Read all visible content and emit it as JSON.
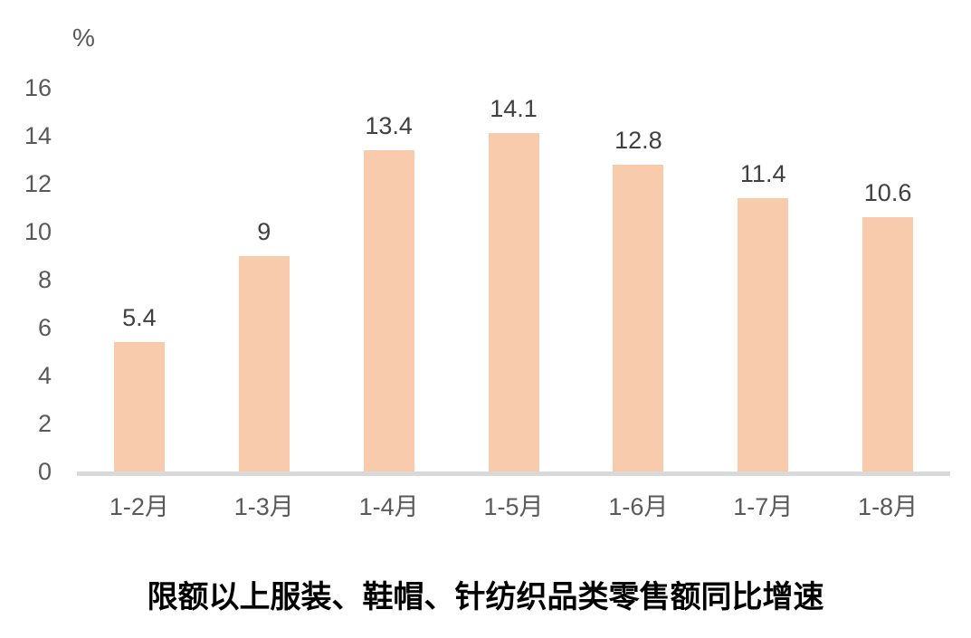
{
  "chart_data": {
    "type": "bar",
    "title": "限额以上服装、鞋帽、针纺织品类零售额同比增速",
    "unit_label": "%",
    "categories": [
      "1-2月",
      "1-3月",
      "1-4月",
      "1-5月",
      "1-6月",
      "1-7月",
      "1-8月"
    ],
    "values": [
      5.4,
      9,
      13.4,
      14.1,
      12.8,
      11.4,
      10.6
    ],
    "value_labels": [
      "5.4",
      "9",
      "13.4",
      "14.1",
      "12.8",
      "11.4",
      "10.6"
    ],
    "ylim": [
      0,
      16
    ],
    "yticks": [
      0,
      2,
      4,
      6,
      8,
      10,
      12,
      14,
      16
    ],
    "grid": false,
    "legend": "none",
    "colors": {
      "bar": "#F8CBAD",
      "axis_line": "#D9D9D9",
      "tick_label": "#595959",
      "value_label": "#404040",
      "title": "#000000"
    }
  }
}
